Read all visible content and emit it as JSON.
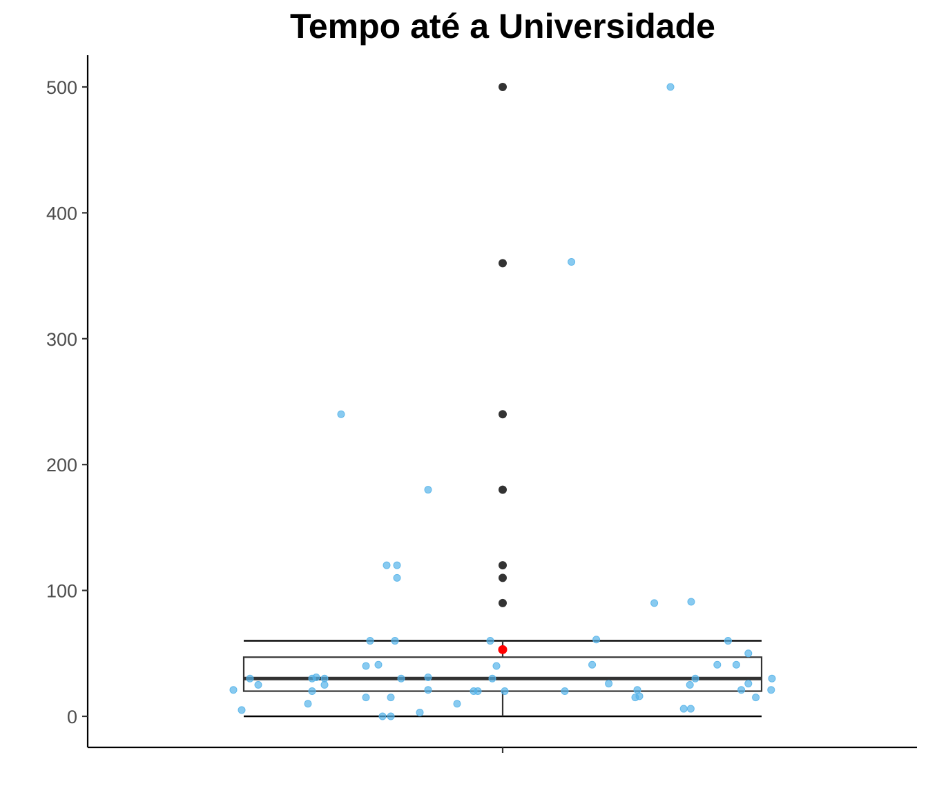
{
  "chart_data": {
    "type": "boxplot",
    "title": "Tempo até a Universidade",
    "xlabel": "",
    "ylabel": "",
    "ylim": [
      -25,
      525
    ],
    "y_ticks": [
      0,
      100,
      200,
      300,
      400,
      500
    ],
    "grid": false,
    "legend": "none",
    "box": {
      "min": 0,
      "q1": 20,
      "median": 30,
      "q3": 47,
      "whisker_high": 60,
      "mean": 53
    },
    "outliers": [
      90,
      110,
      120,
      180,
      240,
      360,
      500
    ],
    "jitter_points": [
      {
        "x": -0.65,
        "y": 21
      },
      {
        "x": -0.63,
        "y": 5
      },
      {
        "x": -0.61,
        "y": 30
      },
      {
        "x": -0.59,
        "y": 25
      },
      {
        "x": -0.47,
        "y": 10
      },
      {
        "x": -0.46,
        "y": 30
      },
      {
        "x": -0.46,
        "y": 20
      },
      {
        "x": -0.45,
        "y": 31
      },
      {
        "x": -0.43,
        "y": 25
      },
      {
        "x": -0.43,
        "y": 30
      },
      {
        "x": -0.39,
        "y": 240
      },
      {
        "x": -0.33,
        "y": 40
      },
      {
        "x": -0.33,
        "y": 15
      },
      {
        "x": -0.32,
        "y": 60
      },
      {
        "x": -0.3,
        "y": 41
      },
      {
        "x": -0.29,
        "y": 0
      },
      {
        "x": -0.28,
        "y": 120
      },
      {
        "x": -0.27,
        "y": 0
      },
      {
        "x": -0.27,
        "y": 15
      },
      {
        "x": -0.26,
        "y": 60
      },
      {
        "x": -0.255,
        "y": 120
      },
      {
        "x": -0.255,
        "y": 110
      },
      {
        "x": -0.245,
        "y": 30
      },
      {
        "x": -0.2,
        "y": 3
      },
      {
        "x": -0.18,
        "y": 180
      },
      {
        "x": -0.18,
        "y": 31
      },
      {
        "x": -0.18,
        "y": 21
      },
      {
        "x": -0.11,
        "y": 10
      },
      {
        "x": -0.07,
        "y": 20
      },
      {
        "x": -0.06,
        "y": 20
      },
      {
        "x": -0.03,
        "y": 60
      },
      {
        "x": -0.025,
        "y": 30
      },
      {
        "x": -0.015,
        "y": 40
      },
      {
        "x": 0.005,
        "y": 20
      },
      {
        "x": 0.15,
        "y": 20
      },
      {
        "x": 0.166,
        "y": 361
      },
      {
        "x": 0.216,
        "y": 41
      },
      {
        "x": 0.226,
        "y": 61
      },
      {
        "x": 0.256,
        "y": 26
      },
      {
        "x": 0.32,
        "y": 15
      },
      {
        "x": 0.325,
        "y": 21
      },
      {
        "x": 0.33,
        "y": 16
      },
      {
        "x": 0.366,
        "y": 90
      },
      {
        "x": 0.405,
        "y": 500
      },
      {
        "x": 0.437,
        "y": 6
      },
      {
        "x": 0.454,
        "y": 6
      },
      {
        "x": 0.452,
        "y": 25
      },
      {
        "x": 0.455,
        "y": 91
      },
      {
        "x": 0.465,
        "y": 30
      },
      {
        "x": 0.518,
        "y": 41
      },
      {
        "x": 0.544,
        "y": 60
      },
      {
        "x": 0.564,
        "y": 41
      },
      {
        "x": 0.576,
        "y": 21
      },
      {
        "x": 0.593,
        "y": 26
      },
      {
        "x": 0.593,
        "y": 50
      },
      {
        "x": 0.611,
        "y": 15
      },
      {
        "x": 0.648,
        "y": 21
      },
      {
        "x": 0.65,
        "y": 30
      }
    ],
    "colors": {
      "points": "#56B4E9",
      "box": "#333333",
      "outliers": "#333333",
      "mean": "#FF0000",
      "axis": "#000000"
    }
  }
}
